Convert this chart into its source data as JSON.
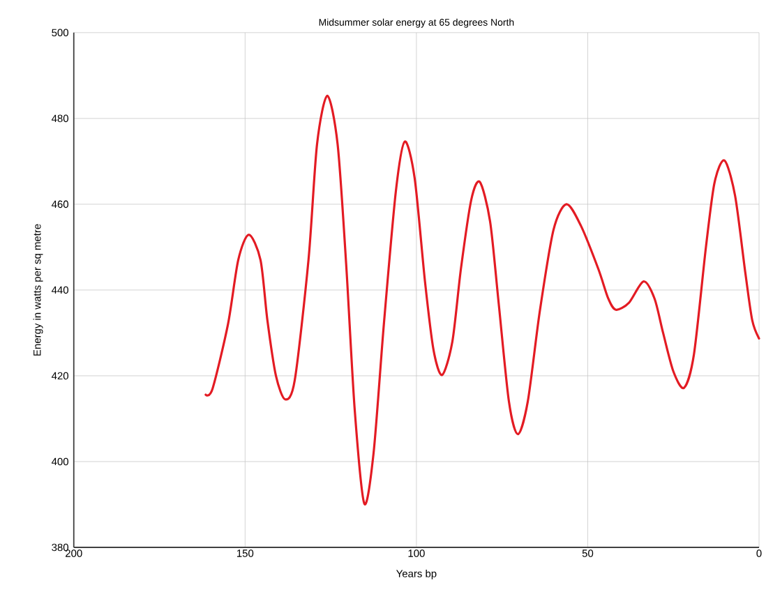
{
  "chart_data": {
    "type": "line",
    "title": "Midsummer solar energy at 65 degrees North",
    "xlabel": "Years bp",
    "ylabel": "Energy in watts per sq metre",
    "xlim": [
      200,
      0
    ],
    "xticks": [
      200,
      150,
      100,
      50,
      0
    ],
    "ylim": [
      380,
      500
    ],
    "yticks": [
      380,
      400,
      420,
      440,
      460,
      480,
      500
    ],
    "grid": true,
    "series": [
      {
        "color": "#e31b23",
        "x": [
          161.5,
          159.5,
          155,
          152,
          148.9,
          145.5,
          143.5,
          141,
          138.3,
          135.5,
          131.5,
          129,
          126,
          123,
          120.5,
          118,
          115.2,
          112.5,
          109.5,
          106,
          103.4,
          100.5,
          97.5,
          95,
          92.5,
          89.5,
          87,
          84,
          81.5,
          78.5,
          76,
          73,
          70.4,
          67.5,
          64,
          60,
          56.2,
          52,
          46.9,
          44,
          41.8,
          38,
          33.7,
          30.5,
          28,
          25,
          21.9,
          19,
          15.5,
          13,
          10.1,
          7,
          4,
          2,
          0
        ],
        "values": [
          415.6,
          417,
          432,
          447,
          452.9,
          447,
          433,
          420,
          414.5,
          419,
          447,
          474,
          485.3,
          474,
          446,
          412,
          390.2,
          402,
          432,
          463,
          474.6,
          466,
          442,
          426,
          420.2,
          428,
          445,
          461,
          465.2,
          456,
          437,
          414,
          406.4,
          414,
          435,
          454,
          460,
          455,
          444.9,
          438,
          435.4,
          437,
          442,
          438,
          430,
          421,
          417.2,
          425,
          450,
          465,
          470.2,
          462,
          444,
          433,
          428.7
        ]
      }
    ]
  }
}
